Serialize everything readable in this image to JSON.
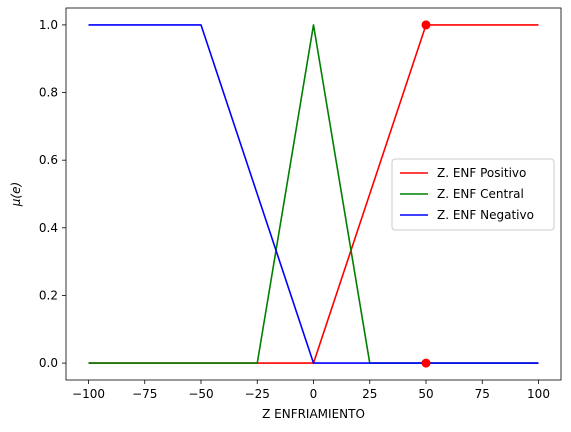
{
  "chart_data": {
    "type": "line",
    "title": "",
    "xlabel": "Z ENFRIAMIENTO",
    "ylabel": "μ(e)",
    "xlim": [
      -110,
      110
    ],
    "ylim": [
      -0.05,
      1.05
    ],
    "xticks": [
      -100,
      -75,
      -50,
      -25,
      0,
      25,
      50,
      75,
      100
    ],
    "yticks": [
      0.0,
      0.2,
      0.4,
      0.6,
      0.8,
      1.0
    ],
    "xtick_labels": [
      "−100",
      "−75",
      "−50",
      "−25",
      "0",
      "25",
      "50",
      "75",
      "100"
    ],
    "ytick_labels": [
      "0.0",
      "0.2",
      "0.4",
      "0.6",
      "0.8",
      "1.0"
    ],
    "grid": false,
    "legend_position": "center-right",
    "series": [
      {
        "name": "Z. ENF Positivo",
        "color": "#ff0000",
        "x": [
          -100,
          0,
          50,
          100
        ],
        "y": [
          0,
          0,
          1,
          1
        ]
      },
      {
        "name": "Z. ENF Central",
        "color": "#008000",
        "x": [
          -100,
          -25,
          0,
          25,
          100
        ],
        "y": [
          0,
          0,
          1,
          0,
          0
        ]
      },
      {
        "name": "Z. ENF Negativo",
        "color": "#0000ff",
        "x": [
          -100,
          -50,
          0,
          100
        ],
        "y": [
          1,
          1,
          0,
          0
        ]
      }
    ],
    "markers": [
      {
        "x": 50,
        "y": 1,
        "color": "#ff0000"
      },
      {
        "x": 50,
        "y": 0,
        "color": "#ff0000"
      }
    ]
  }
}
